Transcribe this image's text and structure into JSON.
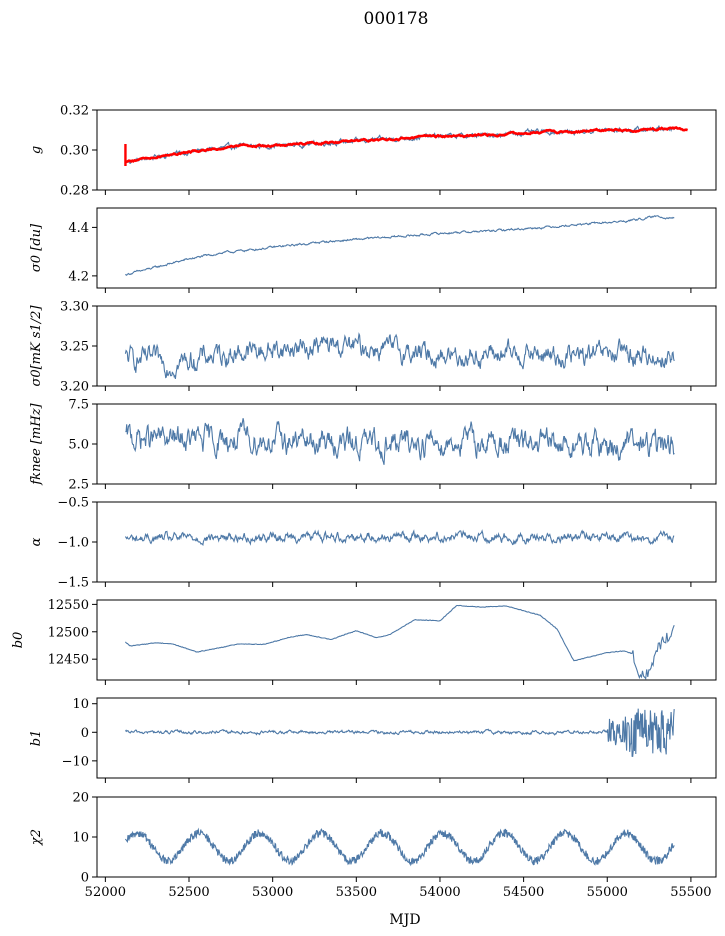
{
  "figure": {
    "title": "000178",
    "xlabel": "MJD"
  },
  "chart_data": [
    {
      "type": "line",
      "ylabel": "g",
      "xlim": [
        51950,
        55650
      ],
      "ylim": [
        0.28,
        0.32
      ],
      "yticks": [
        "0.28",
        "0.30",
        "0.32"
      ],
      "ytick_values": [
        0.28,
        0.3,
        0.32
      ],
      "series": [
        {
          "color": "#4e79a7",
          "style": "noisy",
          "x": [
            52120,
            52200,
            52400,
            52600,
            52800,
            53000,
            53200,
            53400,
            53600,
            53800,
            54000,
            54200,
            54400,
            54600,
            54800,
            55000,
            55200,
            55400
          ],
          "y": [
            0.294,
            0.295,
            0.298,
            0.3,
            0.302,
            0.302,
            0.303,
            0.304,
            0.305,
            0.306,
            0.307,
            0.307,
            0.308,
            0.309,
            0.309,
            0.31,
            0.31,
            0.311
          ],
          "noise": 0.0008
        },
        {
          "color": "#ff0000",
          "style": "fit",
          "x": [
            52120,
            52200,
            52400,
            52600,
            52800,
            53000,
            53200,
            53400,
            53600,
            53800,
            54000,
            54200,
            54400,
            54600,
            54800,
            55000,
            55200,
            55400,
            55480
          ],
          "y": [
            0.294,
            0.295,
            0.298,
            0.3,
            0.302,
            0.302,
            0.303,
            0.304,
            0.305,
            0.306,
            0.307,
            0.307,
            0.308,
            0.309,
            0.309,
            0.31,
            0.31,
            0.311,
            0.31
          ],
          "noise": 0.0004
        }
      ]
    },
    {
      "type": "line",
      "ylabel": "σ0 [du]",
      "xlim": [
        51950,
        55650
      ],
      "ylim": [
        4.15,
        4.48
      ],
      "yticks": [
        "4.2",
        "4.4"
      ],
      "ytick_values": [
        4.2,
        4.4
      ],
      "series": [
        {
          "color": "#4e79a7",
          "style": "noisy",
          "x": [
            52120,
            52300,
            52500,
            52700,
            52900,
            53100,
            53300,
            53500,
            53700,
            53900,
            54100,
            54300,
            54500,
            54700,
            54900,
            55100,
            55300,
            55400
          ],
          "y": [
            4.205,
            4.235,
            4.27,
            4.295,
            4.31,
            4.325,
            4.34,
            4.35,
            4.36,
            4.37,
            4.38,
            4.385,
            4.395,
            4.405,
            4.415,
            4.425,
            4.445,
            4.44
          ],
          "noise": 0.003
        }
      ]
    },
    {
      "type": "line",
      "ylabel": "σ0[mK s1/2]",
      "xlim": [
        51950,
        55650
      ],
      "ylim": [
        3.2,
        3.3
      ],
      "yticks": [
        "3.20",
        "3.25",
        "3.30"
      ],
      "ytick_values": [
        3.2,
        3.25,
        3.3
      ],
      "series": [
        {
          "color": "#4e79a7",
          "style": "noisy",
          "x": [
            52120,
            52400,
            52700,
            53000,
            53300,
            53600,
            53900,
            54200,
            54500,
            54800,
            55100,
            55400
          ],
          "y": [
            3.235,
            3.228,
            3.24,
            3.245,
            3.25,
            3.248,
            3.24,
            3.238,
            3.24,
            3.236,
            3.24,
            3.235
          ],
          "noise": 0.009
        }
      ]
    },
    {
      "type": "line",
      "ylabel": "fknee [mHz]",
      "xlim": [
        51950,
        55650
      ],
      "ylim": [
        2.5,
        7.5
      ],
      "yticks": [
        "2.5",
        "5.0",
        "7.5"
      ],
      "ytick_values": [
        2.5,
        5.0,
        7.5
      ],
      "series": [
        {
          "color": "#4e79a7",
          "style": "noisy",
          "x": [
            52120,
            52500,
            52900,
            53300,
            53700,
            54100,
            54500,
            54900,
            55400
          ],
          "y": [
            5.4,
            5.2,
            5.3,
            5.1,
            5.0,
            5.2,
            5.0,
            4.9,
            4.9
          ],
          "noise": 0.55
        }
      ]
    },
    {
      "type": "line",
      "ylabel": "α",
      "xlim": [
        51950,
        55650
      ],
      "ylim": [
        -1.5,
        -0.5
      ],
      "yticks": [
        "−1.5",
        "−1.0",
        "−0.5"
      ],
      "ytick_values": [
        -1.5,
        -1.0,
        -0.5
      ],
      "series": [
        {
          "color": "#4e79a7",
          "style": "noisy",
          "x": [
            52120,
            52500,
            52900,
            53300,
            53700,
            54100,
            54500,
            54900,
            55400
          ],
          "y": [
            -0.96,
            -0.95,
            -0.94,
            -0.93,
            -0.93,
            -0.93,
            -0.94,
            -0.94,
            -0.96
          ],
          "noise": 0.04
        }
      ]
    },
    {
      "type": "line",
      "ylabel": "b0",
      "xlim": [
        51950,
        55650
      ],
      "ylim": [
        12412,
        12558
      ],
      "yticks": [
        "12450",
        "12500",
        "12550"
      ],
      "ytick_values": [
        12450,
        12500,
        12550
      ],
      "series": [
        {
          "color": "#4e79a7",
          "style": "smooth",
          "x": [
            52120,
            52150,
            52300,
            52400,
            52550,
            52700,
            52800,
            52950,
            53100,
            53200,
            53350,
            53500,
            53620,
            53700,
            53850,
            54000,
            54100,
            54250,
            54400,
            54600,
            54700,
            54800,
            55000,
            55100,
            55150,
            55200,
            55250,
            55300,
            55400
          ],
          "y": [
            12481,
            12474,
            12480,
            12478,
            12463,
            12472,
            12478,
            12477,
            12490,
            12495,
            12486,
            12502,
            12489,
            12495,
            12522,
            12520,
            12548,
            12545,
            12547,
            12530,
            12505,
            12447,
            12462,
            12465,
            12460,
            12419,
            12425,
            12470,
            12505
          ],
          "noise": 0
        }
      ]
    },
    {
      "type": "line",
      "ylabel": "b1",
      "xlim": [
        51950,
        55650
      ],
      "ylim": [
        -16,
        12
      ],
      "yticks": [
        "−10",
        "0",
        "10"
      ],
      "ytick_values": [
        -10,
        0,
        10
      ],
      "series": [
        {
          "color": "#4e79a7",
          "style": "noisy",
          "x": [
            52120,
            52500,
            52900,
            53300,
            53700,
            54100,
            54500,
            54900,
            55000,
            55400
          ],
          "y": [
            0,
            0,
            0,
            0,
            0,
            0,
            0,
            0,
            0,
            0
          ],
          "noise": 0.4
        }
      ]
    },
    {
      "type": "line",
      "ylabel": "χ2",
      "xlim": [
        51950,
        55650
      ],
      "ylim": [
        0,
        20
      ],
      "yticks": [
        "0",
        "10",
        "20"
      ],
      "ytick_values": [
        0,
        10,
        20
      ],
      "xticks": [
        "52000",
        "52500",
        "53000",
        "53500",
        "54000",
        "54500",
        "55000",
        "55500"
      ],
      "xtick_values": [
        52000,
        52500,
        53000,
        53500,
        54000,
        54500,
        55000,
        55500
      ],
      "series": [
        {
          "color": "#4e79a7",
          "style": "periodic",
          "x": [
            52120,
            55400
          ],
          "y": [
            7.5,
            7.5
          ],
          "amplitude": 3.5,
          "period": 365,
          "noise": 1.0
        }
      ]
    }
  ]
}
